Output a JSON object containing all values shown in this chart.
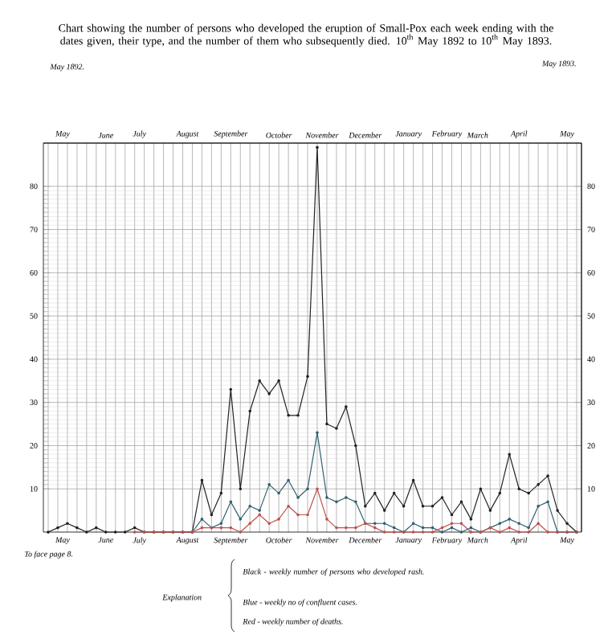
{
  "chart_data": {
    "type": "line",
    "title": "Chart showing the number of persons who developed the eruption of Small-Pox each week ending with the dates given, their type, and the number of them who subsequently died. 10$^{th}$ May 1892 to 10$^{th}$ May 1893.",
    "categories": [
      null,
      null,
      null,
      null,
      null,
      null,
      null,
      null,
      null,
      null,
      null,
      null,
      null,
      null,
      null,
      null,
      null,
      null,
      null,
      null,
      null,
      null,
      null,
      null,
      null,
      null,
      null,
      null,
      null,
      null,
      null,
      null,
      null,
      null,
      null,
      null,
      null,
      null,
      null,
      null,
      null,
      null,
      null,
      null,
      null,
      null,
      null,
      null,
      null,
      null,
      null,
      null,
      null,
      null,
      null,
      null
    ],
    "series": [
      {
        "color": "#222222",
        "values": [
          0,
          1,
          2,
          1,
          0,
          1,
          0,
          0,
          0,
          1,
          0,
          0,
          0,
          0,
          0,
          0,
          12,
          4,
          9,
          33,
          10,
          28,
          35,
          32,
          35,
          27,
          27,
          36,
          89,
          25,
          24,
          29,
          20,
          6,
          9,
          5,
          9,
          6,
          12,
          6,
          6,
          8,
          4,
          7,
          3,
          10,
          5,
          9,
          18,
          10,
          9,
          11,
          13,
          5,
          2,
          0
        ]
      },
      {
        "color": "#2f6070",
        "values": [
          null,
          null,
          null,
          null,
          null,
          null,
          null,
          null,
          null,
          null,
          null,
          null,
          null,
          null,
          null,
          0,
          3,
          1,
          2,
          7,
          3,
          6,
          5,
          11,
          9,
          12,
          8,
          10,
          23,
          8,
          7,
          8,
          7,
          2,
          2,
          2,
          1,
          0,
          2,
          1,
          1,
          0,
          1,
          0,
          1,
          0,
          1,
          2,
          3,
          2,
          1,
          6,
          7,
          0,
          0,
          0
        ]
      },
      {
        "color": "#c0504d",
        "values": [
          null,
          null,
          null,
          null,
          null,
          null,
          null,
          null,
          null,
          0,
          0,
          0,
          0,
          0,
          0,
          0,
          1,
          1,
          1,
          1,
          0,
          2,
          4,
          2,
          3,
          6,
          4,
          4,
          10,
          3,
          1,
          1,
          1,
          2,
          1,
          0,
          0,
          0,
          0,
          0,
          0,
          1,
          2,
          2,
          0,
          0,
          1,
          0,
          1,
          0,
          0,
          2,
          0,
          0,
          0,
          0
        ]
      }
    ],
    "ylim": [
      0,
      90
    ],
    "yticks": [
      10,
      20,
      30,
      40,
      50,
      60,
      70,
      80
    ],
    "y2lim": [
      0,
      90
    ],
    "y2ticks": [
      10,
      20,
      30,
      40,
      50,
      60,
      70,
      80
    ],
    "grid": true,
    "marker": "circle",
    "line_style": "solid",
    "annotations": [
      "May 1892.",
      "May 1893.",
      "To face page 8.",
      "Explanation",
      "Black - weekly number of persons who developed rash.",
      "Blue - weekly no of confluent cases.",
      "Red - weekly number of deaths.",
      "May",
      "June",
      "July",
      "August",
      "September",
      "October",
      "November",
      "December",
      "January",
      "February",
      "March",
      "April",
      "May",
      "May",
      "June",
      "July",
      "August",
      "September",
      "October",
      "November",
      "December",
      "January",
      "February",
      "March",
      "April",
      "May"
    ]
  }
}
